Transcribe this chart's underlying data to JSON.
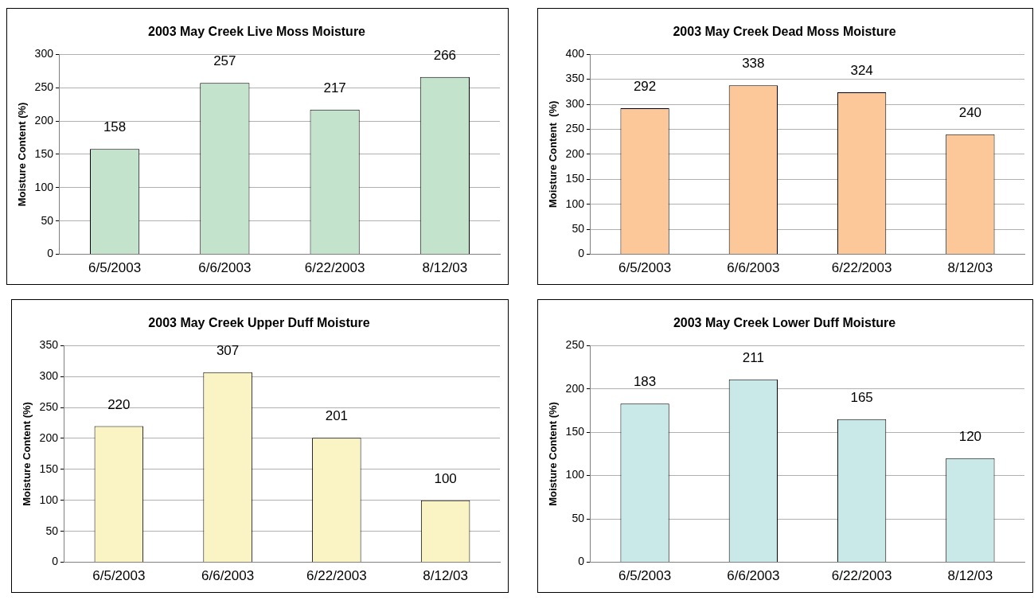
{
  "chart_data": [
    {
      "type": "bar",
      "title": "2003 May Creek Live Moss Moisture",
      "ylabel": "Moisture Content (%)",
      "categories": [
        "6/5/2003",
        "6/6/2003",
        "6/22/2003",
        "8/12/03"
      ],
      "values": [
        158,
        257,
        217,
        266
      ],
      "color": "#c4e3cc",
      "ylim": [
        0,
        300
      ],
      "yticks": [
        0,
        50,
        100,
        150,
        200,
        250,
        300
      ],
      "grid": "y",
      "data_labels": true
    },
    {
      "type": "bar",
      "title": "2003 May Creek Dead Moss Moisture",
      "ylabel": "Moisture Content  (%)",
      "categories": [
        "6/5/2003",
        "6/6/2003",
        "6/22/2003",
        "8/12/03"
      ],
      "values": [
        292,
        338,
        324,
        240
      ],
      "color": "#fcc89a",
      "ylim": [
        0,
        400
      ],
      "yticks": [
        0,
        50,
        100,
        150,
        200,
        250,
        300,
        350,
        400
      ],
      "grid": "y",
      "data_labels": true
    },
    {
      "type": "bar",
      "title": "2003 May Creek Upper Duff Moisture",
      "ylabel": "Moisture Content (%)",
      "categories": [
        "6/5/2003",
        "6/6/2003",
        "6/22/2003",
        "8/12/03"
      ],
      "values": [
        220,
        307,
        201,
        100
      ],
      "color": "#faf4c4",
      "ylim": [
        0,
        350
      ],
      "yticks": [
        0,
        50,
        100,
        150,
        200,
        250,
        300,
        350
      ],
      "grid": "y",
      "data_labels": true
    },
    {
      "type": "bar",
      "title": "2003 May Creek Lower Duff Moisture",
      "ylabel": "Moisture Content (%)",
      "categories": [
        "6/5/2003",
        "6/6/2003",
        "6/22/2003",
        "8/12/03"
      ],
      "values": [
        183,
        211,
        165,
        120
      ],
      "color": "#c9e8e8",
      "ylim": [
        0,
        250
      ],
      "yticks": [
        0,
        50,
        100,
        150,
        200,
        250
      ],
      "grid": "y",
      "data_labels": true
    }
  ]
}
